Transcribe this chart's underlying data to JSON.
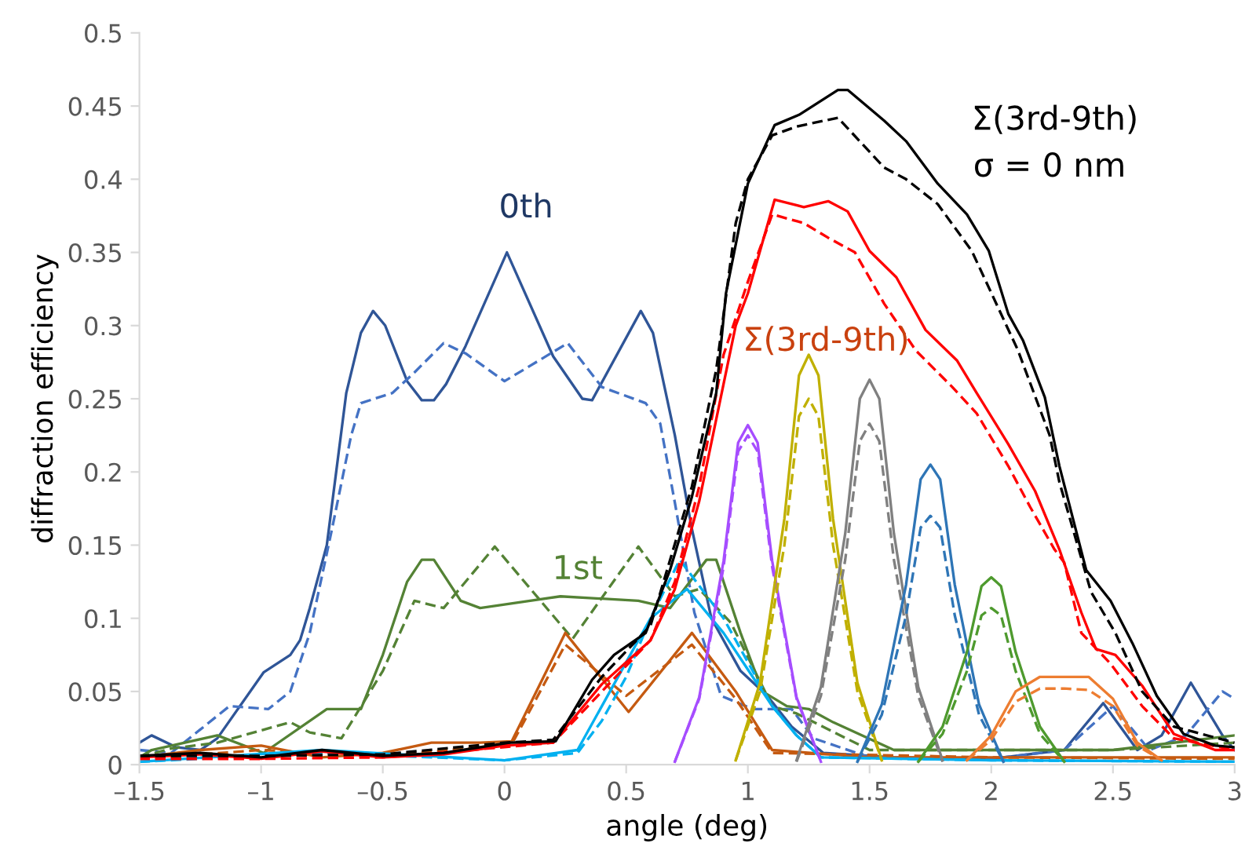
{
  "chart_data": {
    "type": "line",
    "xlabel": "angle (deg)",
    "ylabel": "diffraction efficiency",
    "xlim": [
      -1.5,
      3
    ],
    "ylim": [
      0,
      0.5
    ],
    "xticks": [
      {
        "value": -1.5,
        "label": "–1.5"
      },
      {
        "value": -1,
        "label": "–1"
      },
      {
        "value": -0.5,
        "label": "–0.5"
      },
      0,
      0.5,
      1,
      1.5,
      2,
      2.5,
      3
    ],
    "yticks": [
      0,
      0.05,
      0.1,
      0.15,
      0.2,
      0.25,
      0.3,
      0.35,
      0.4,
      0.45,
      0.5
    ],
    "annotations": [
      "σ = 0 nm"
    ],
    "series": [
      {
        "name": "0th",
        "color": "#2f5597",
        "line_style": "solid",
        "x": [
          -1.5,
          -1.45,
          -1.35,
          -1.25,
          -1.18,
          -0.99,
          -0.88,
          -0.84,
          -0.8,
          -0.73,
          -0.65,
          -0.59,
          -0.54,
          -0.49,
          -0.4,
          -0.34,
          -0.29,
          -0.24,
          -0.16,
          0.01,
          0.2,
          0.32,
          0.36,
          0.56,
          0.61,
          0.7,
          0.77,
          0.85,
          0.97,
          1.08,
          1.18,
          1.31,
          1.6,
          2.0,
          2.3,
          2.46,
          2.6,
          2.7,
          2.82,
          2.95,
          3
        ],
        "values": [
          0.015,
          0.02,
          0.012,
          0.01,
          0.018,
          0.063,
          0.075,
          0.085,
          0.107,
          0.15,
          0.254,
          0.295,
          0.31,
          0.3,
          0.262,
          0.249,
          0.249,
          0.26,
          0.286,
          0.35,
          0.279,
          0.25,
          0.249,
          0.31,
          0.295,
          0.225,
          0.161,
          0.1,
          0.064,
          0.047,
          0.026,
          0.008,
          0.005,
          0.004,
          0.01,
          0.042,
          0.01,
          0.02,
          0.056,
          0.02,
          0.01
        ]
      },
      {
        "color": "#4472c4",
        "line_style": "dashed",
        "x": [
          -1.5,
          -1.37,
          -1.13,
          -0.97,
          -0.88,
          -0.8,
          -0.71,
          -0.63,
          -0.59,
          -0.46,
          -0.37,
          -0.25,
          -0.16,
          0.0,
          0.26,
          0.4,
          0.58,
          0.64,
          0.7,
          0.78,
          0.89,
          1.02,
          1.18,
          1.27,
          1.5,
          2.0,
          2.3,
          2.5,
          2.65,
          2.8,
          2.95,
          3
        ],
        "values": [
          0.01,
          0.008,
          0.04,
          0.038,
          0.05,
          0.09,
          0.16,
          0.225,
          0.247,
          0.254,
          0.268,
          0.288,
          0.281,
          0.262,
          0.288,
          0.258,
          0.247,
          0.233,
          0.179,
          0.104,
          0.047,
          0.038,
          0.038,
          0.018,
          0.005,
          0.004,
          0.01,
          0.04,
          0.01,
          0.02,
          0.05,
          0.045
        ]
      },
      {
        "name": "1st",
        "color": "#548235",
        "line_style": "solid",
        "x": [
          -1.5,
          -1.45,
          -1.18,
          -0.99,
          -0.73,
          -0.59,
          -0.5,
          -0.4,
          -0.34,
          -0.29,
          -0.18,
          -0.1,
          0.23,
          0.55,
          0.68,
          0.83,
          0.87,
          0.97,
          1.06,
          1.16,
          1.25,
          1.35,
          1.6,
          2.0,
          2.5,
          3
        ],
        "values": [
          0.005,
          0.01,
          0.02,
          0.008,
          0.038,
          0.038,
          0.075,
          0.125,
          0.14,
          0.14,
          0.112,
          0.107,
          0.115,
          0.112,
          0.107,
          0.14,
          0.14,
          0.09,
          0.05,
          0.04,
          0.038,
          0.029,
          0.01,
          0.01,
          0.01,
          0.02
        ]
      },
      {
        "color": "#548235",
        "line_style": "dashed",
        "x": [
          -1.5,
          -1.37,
          -1.18,
          -0.88,
          -0.8,
          -0.67,
          -0.5,
          -0.37,
          -0.25,
          -0.04,
          0.28,
          0.55,
          0.7,
          0.8,
          0.93,
          1.1,
          1.2,
          1.5,
          2.0,
          2.5,
          3
        ],
        "values": [
          0.005,
          0.011,
          0.015,
          0.029,
          0.022,
          0.018,
          0.064,
          0.112,
          0.107,
          0.149,
          0.086,
          0.149,
          0.115,
          0.12,
          0.097,
          0.04,
          0.035,
          0.01,
          0.01,
          0.01,
          0.015
        ]
      },
      {
        "color": "#c55a11",
        "line_style": "solid",
        "x": [
          -1.5,
          -1.25,
          -1.0,
          -0.75,
          -0.5,
          -0.3,
          -0.1,
          0.03,
          0.25,
          0.51,
          0.77,
          0.95,
          1.1,
          1.5,
          2.0,
          3
        ],
        "values": [
          0.005,
          0.01,
          0.013,
          0.005,
          0.008,
          0.015,
          0.015,
          0.016,
          0.09,
          0.036,
          0.09,
          0.05,
          0.01,
          0.005,
          0.005,
          0.005
        ]
      },
      {
        "color": "#c55a11",
        "line_style": "dashed",
        "x": [
          -1.5,
          -1.0,
          -0.5,
          -0.1,
          0.03,
          0.25,
          0.5,
          0.77,
          0.95,
          1.1,
          2.0,
          3
        ],
        "values": [
          0.004,
          0.01,
          0.006,
          0.012,
          0.014,
          0.082,
          0.047,
          0.082,
          0.045,
          0.008,
          0.005,
          0.004
        ]
      },
      {
        "color": "#00b0f0",
        "line_style": "solid",
        "x": [
          -1.5,
          -0.75,
          0.0,
          0.3,
          0.4,
          0.5,
          0.6,
          0.75,
          0.9,
          1.0,
          1.1,
          1.2,
          1.3,
          2.0,
          3
        ],
        "values": [
          0.002,
          0.01,
          0.003,
          0.01,
          0.04,
          0.07,
          0.1,
          0.12,
          0.09,
          0.065,
          0.04,
          0.02,
          0.005,
          0.003,
          0.002
        ]
      },
      {
        "color": "#00b0f0",
        "line_style": "dashed",
        "x": [
          -1.5,
          -0.75,
          0.0,
          0.3,
          0.4,
          0.5,
          0.6,
          0.72,
          0.9,
          1.0,
          1.1,
          1.2,
          1.3,
          2.0,
          3
        ],
        "values": [
          0.002,
          0.008,
          0.003,
          0.008,
          0.03,
          0.06,
          0.1,
          0.14,
          0.1,
          0.07,
          0.04,
          0.02,
          0.005,
          0.003,
          0.002
        ]
      },
      {
        "color": "#a64dff",
        "line_style": "solid",
        "x": [
          0.7,
          0.8,
          0.9,
          0.96,
          1.0,
          1.04,
          1.1,
          1.2,
          1.3
        ],
        "values": [
          0.002,
          0.046,
          0.139,
          0.22,
          0.232,
          0.22,
          0.139,
          0.046,
          0.002
        ]
      },
      {
        "color": "#a64dff",
        "line_style": "dashed",
        "x": [
          0.7,
          0.8,
          0.9,
          0.96,
          1.0,
          1.04,
          1.1,
          1.2,
          1.3
        ],
        "values": [
          0.002,
          0.045,
          0.135,
          0.214,
          0.225,
          0.214,
          0.135,
          0.045,
          0.002
        ]
      },
      {
        "color": "#c0b000",
        "line_style": "solid",
        "x": [
          0.95,
          1.05,
          1.15,
          1.21,
          1.25,
          1.29,
          1.35,
          1.45,
          1.55
        ],
        "values": [
          0.003,
          0.056,
          0.168,
          0.266,
          0.28,
          0.266,
          0.168,
          0.056,
          0.003
        ]
      },
      {
        "color": "#c0b000",
        "line_style": "dashed",
        "x": [
          0.95,
          1.05,
          1.15,
          1.21,
          1.25,
          1.29,
          1.35,
          1.45,
          1.55
        ],
        "values": [
          0.003,
          0.05,
          0.15,
          0.238,
          0.25,
          0.238,
          0.15,
          0.05,
          0.003
        ]
      },
      {
        "color": "#808080",
        "line_style": "solid",
        "x": [
          1.2,
          1.3,
          1.4,
          1.46,
          1.5,
          1.54,
          1.6,
          1.7,
          1.8
        ],
        "values": [
          0.003,
          0.053,
          0.158,
          0.25,
          0.263,
          0.25,
          0.158,
          0.053,
          0.003
        ]
      },
      {
        "color": "#808080",
        "line_style": "dashed",
        "x": [
          1.2,
          1.3,
          1.4,
          1.46,
          1.5,
          1.54,
          1.6,
          1.7,
          1.8
        ],
        "values": [
          0.002,
          0.047,
          0.14,
          0.221,
          0.233,
          0.221,
          0.14,
          0.047,
          0.002
        ]
      },
      {
        "color": "#2e75b6",
        "line_style": "solid",
        "x": [
          1.45,
          1.55,
          1.65,
          1.71,
          1.75,
          1.79,
          1.85,
          1.95,
          2.05
        ],
        "values": [
          0.002,
          0.041,
          0.123,
          0.195,
          0.205,
          0.195,
          0.123,
          0.041,
          0.002
        ]
      },
      {
        "color": "#2e75b6",
        "line_style": "dashed",
        "x": [
          1.45,
          1.55,
          1.65,
          1.71,
          1.75,
          1.79,
          1.85,
          1.95,
          2.05
        ],
        "values": [
          0.002,
          0.034,
          0.102,
          0.162,
          0.17,
          0.162,
          0.102,
          0.034,
          0.002
        ]
      },
      {
        "color": "#4e9a2e",
        "line_style": "solid",
        "x": [
          1.7,
          1.8,
          1.9,
          1.96,
          2.0,
          2.04,
          2.1,
          2.2,
          2.3
        ],
        "values": [
          0.002,
          0.026,
          0.077,
          0.122,
          0.128,
          0.122,
          0.077,
          0.026,
          0.002
        ]
      },
      {
        "color": "#4e9a2e",
        "line_style": "dashed",
        "x": [
          1.7,
          1.8,
          1.9,
          1.96,
          2.0,
          2.04,
          2.1,
          2.2,
          2.3
        ],
        "values": [
          0.002,
          0.021,
          0.064,
          0.102,
          0.107,
          0.102,
          0.064,
          0.021,
          0.002
        ]
      },
      {
        "color": "#ed7d31",
        "line_style": "solid",
        "x": [
          1.9,
          2.0,
          2.1,
          2.2,
          2.3,
          2.4,
          2.5,
          2.6,
          2.7
        ],
        "values": [
          0.003,
          0.02,
          0.05,
          0.06,
          0.06,
          0.06,
          0.045,
          0.015,
          0.003
        ]
      },
      {
        "color": "#ed7d31",
        "line_style": "dashed",
        "x": [
          1.9,
          2.0,
          2.1,
          2.2,
          2.3,
          2.4,
          2.5,
          2.6,
          2.7
        ],
        "values": [
          0.003,
          0.017,
          0.043,
          0.052,
          0.052,
          0.051,
          0.04,
          0.013,
          0.003
        ]
      },
      {
        "name": "Σ(3rd-9th)",
        "color": "#ff0000",
        "line_style": "solid",
        "x": [
          -1.5,
          -1.25,
          -1.0,
          -0.75,
          -0.5,
          -0.25,
          0.0,
          0.2,
          0.4,
          0.6,
          0.7,
          0.8,
          0.9,
          0.95,
          1.0,
          1.11,
          1.23,
          1.33,
          1.41,
          1.5,
          1.61,
          1.73,
          1.86,
          1.94,
          2.07,
          2.18,
          2.28,
          2.37,
          2.43,
          2.51,
          2.62,
          2.75,
          2.92,
          3
        ],
        "values": [
          0.005,
          0.007,
          0.004,
          0.009,
          0.005,
          0.007,
          0.013,
          0.015,
          0.055,
          0.085,
          0.12,
          0.18,
          0.26,
          0.3,
          0.322,
          0.386,
          0.381,
          0.385,
          0.378,
          0.351,
          0.333,
          0.297,
          0.276,
          0.254,
          0.219,
          0.187,
          0.147,
          0.104,
          0.079,
          0.075,
          0.054,
          0.021,
          0.01,
          0.01
        ]
      },
      {
        "color": "#ff0000",
        "line_style": "dashed",
        "x": [
          -1.5,
          -1.0,
          -0.5,
          0.0,
          0.2,
          0.4,
          0.6,
          0.7,
          0.8,
          0.9,
          1.0,
          1.1,
          1.23,
          1.33,
          1.44,
          1.56,
          1.69,
          1.84,
          1.94,
          2.07,
          2.16,
          2.26,
          2.3,
          2.37,
          2.49,
          2.62,
          2.75,
          3
        ],
        "values": [
          0.004,
          0.004,
          0.005,
          0.012,
          0.015,
          0.05,
          0.085,
          0.125,
          0.19,
          0.28,
          0.33,
          0.376,
          0.37,
          0.36,
          0.35,
          0.315,
          0.283,
          0.258,
          0.24,
          0.204,
          0.176,
          0.147,
          0.138,
          0.09,
          0.069,
          0.04,
          0.018,
          0.01
        ]
      },
      {
        "name": "Σ(3rd-9th)",
        "color": "#000000",
        "line_style": "solid",
        "x": [
          -1.5,
          -1.25,
          -1.0,
          -0.75,
          -0.5,
          -0.25,
          0.02,
          0.21,
          0.36,
          0.45,
          0.58,
          0.68,
          0.77,
          0.87,
          0.91,
          1.0,
          1.11,
          1.21,
          1.37,
          1.41,
          1.56,
          1.65,
          1.78,
          1.9,
          1.99,
          2.07,
          2.13,
          2.22,
          2.28,
          2.39,
          2.49,
          2.58,
          2.68,
          2.79,
          2.92,
          3
        ],
        "values": [
          0.006,
          0.008,
          0.005,
          0.01,
          0.006,
          0.008,
          0.015,
          0.016,
          0.058,
          0.075,
          0.09,
          0.133,
          0.183,
          0.254,
          0.322,
          0.397,
          0.437,
          0.444,
          0.461,
          0.461,
          0.44,
          0.426,
          0.397,
          0.376,
          0.351,
          0.308,
          0.29,
          0.251,
          0.204,
          0.133,
          0.112,
          0.083,
          0.047,
          0.021,
          0.013,
          0.012
        ]
      },
      {
        "color": "#000000",
        "line_style": "dashed",
        "x": [
          -1.5,
          -1.0,
          -0.5,
          0.0,
          0.2,
          0.4,
          0.6,
          0.77,
          0.87,
          0.95,
          1.0,
          1.1,
          1.2,
          1.37,
          1.56,
          1.65,
          1.78,
          1.92,
          2.11,
          2.24,
          2.28,
          2.41,
          2.51,
          2.62,
          2.75,
          3
        ],
        "values": [
          0.006,
          0.006,
          0.007,
          0.015,
          0.017,
          0.06,
          0.095,
          0.19,
          0.27,
          0.37,
          0.4,
          0.43,
          0.436,
          0.442,
          0.408,
          0.4,
          0.383,
          0.351,
          0.283,
          0.225,
          0.193,
          0.118,
          0.09,
          0.05,
          0.026,
          0.015
        ]
      }
    ]
  }
}
